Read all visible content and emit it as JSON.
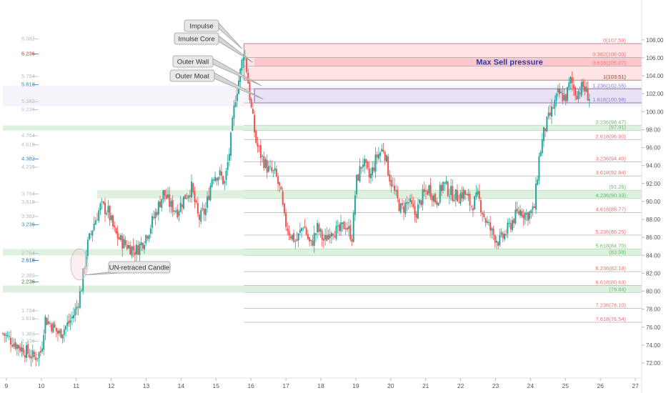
{
  "chart_data": {
    "type": "candlestick",
    "title": "",
    "xlabel": "",
    "ylabel": "",
    "ylim": [
      71,
      109
    ],
    "x_ticks": [
      {
        "label": "9",
        "day": 9
      },
      {
        "label": "10",
        "day": 10
      },
      {
        "label": "11",
        "day": 11
      },
      {
        "label": "12",
        "day": 12
      },
      {
        "label": "13",
        "day": 13
      },
      {
        "label": "14",
        "day": 14
      },
      {
        "label": "15",
        "day": 15
      },
      {
        "label": "16",
        "day": 16
      },
      {
        "label": "17",
        "day": 17
      },
      {
        "label": "18",
        "day": 18
      },
      {
        "label": "19",
        "day": 19
      },
      {
        "label": "20",
        "day": 20
      },
      {
        "label": "21",
        "day": 21
      },
      {
        "label": "22",
        "day": 22
      },
      {
        "label": "23",
        "day": 23
      },
      {
        "label": "24",
        "day": 24
      },
      {
        "label": "25",
        "day": 25
      },
      {
        "label": "26",
        "day": 26
      },
      {
        "label": "27",
        "day": 27
      }
    ],
    "y_ticks": [
      72,
      74,
      76,
      78,
      80,
      82,
      84,
      86,
      88,
      90,
      92,
      94,
      96,
      98,
      100,
      102,
      104,
      106,
      108
    ],
    "y_tick_labels": [
      "72.00",
      "74.00",
      "76.00",
      "78.00",
      "80.00",
      "82.00",
      "84.00",
      "86.00",
      "88.00",
      "90.00",
      "92.00",
      "94.00",
      "96.00",
      "98.00",
      "100.00",
      "102.00",
      "104.00",
      "106.00",
      "108.00"
    ],
    "price_path": [
      [
        8.9,
        75.3
      ],
      [
        9.3,
        74.0
      ],
      [
        9.8,
        72.6
      ],
      [
        10.0,
        73.3
      ],
      [
        10.1,
        77.0
      ],
      [
        10.3,
        76.2
      ],
      [
        10.5,
        75.2
      ],
      [
        10.8,
        76.5
      ],
      [
        11.0,
        78.0
      ],
      [
        11.15,
        80.5
      ],
      [
        11.3,
        84.8
      ],
      [
        11.5,
        87.5
      ],
      [
        11.7,
        89.5
      ],
      [
        11.9,
        89.0
      ],
      [
        12.1,
        86.5
      ],
      [
        12.3,
        85.5
      ],
      [
        12.5,
        85.0
      ],
      [
        12.7,
        84.5
      ],
      [
        12.9,
        85.5
      ],
      [
        13.1,
        87.0
      ],
      [
        13.3,
        89.0
      ],
      [
        13.5,
        91.0
      ],
      [
        13.7,
        89.5
      ],
      [
        13.9,
        89.0
      ],
      [
        14.1,
        90.5
      ],
      [
        14.3,
        91.5
      ],
      [
        14.5,
        88.0
      ],
      [
        14.7,
        89.0
      ],
      [
        14.9,
        93.0
      ],
      [
        15.1,
        93.0
      ],
      [
        15.25,
        92.0
      ],
      [
        15.4,
        96.0
      ],
      [
        15.55,
        101.5
      ],
      [
        15.7,
        104.5
      ],
      [
        15.8,
        107.0
      ],
      [
        15.9,
        104.0
      ],
      [
        16.0,
        100.5
      ],
      [
        16.15,
        96.5
      ],
      [
        16.3,
        95.0
      ],
      [
        16.5,
        93.5
      ],
      [
        16.7,
        93.0
      ],
      [
        16.85,
        91.0
      ],
      [
        16.95,
        88.0
      ],
      [
        17.1,
        86.5
      ],
      [
        17.3,
        85.5
      ],
      [
        17.5,
        87.5
      ],
      [
        17.7,
        85.0
      ],
      [
        17.9,
        87.0
      ],
      [
        18.1,
        85.5
      ],
      [
        18.3,
        87.0
      ],
      [
        18.5,
        86.5
      ],
      [
        18.7,
        87.5
      ],
      [
        18.9,
        86.0
      ],
      [
        19.0,
        92.0
      ],
      [
        19.2,
        94.5
      ],
      [
        19.4,
        92.5
      ],
      [
        19.6,
        95.0
      ],
      [
        19.8,
        96.0
      ],
      [
        19.95,
        93.0
      ],
      [
        20.1,
        91.0
      ],
      [
        20.3,
        89.0
      ],
      [
        20.5,
        90.0
      ],
      [
        20.7,
        88.5
      ],
      [
        20.9,
        90.5
      ],
      [
        21.1,
        91.5
      ],
      [
        21.3,
        90.0
      ],
      [
        21.5,
        92.0
      ],
      [
        21.7,
        91.0
      ],
      [
        21.9,
        90.5
      ],
      [
        22.1,
        91.0
      ],
      [
        22.3,
        89.5
      ],
      [
        22.5,
        90.5
      ],
      [
        22.7,
        88.0
      ],
      [
        22.9,
        86.5
      ],
      [
        23.1,
        85.5
      ],
      [
        23.3,
        86.5
      ],
      [
        23.5,
        88.0
      ],
      [
        23.7,
        89.0
      ],
      [
        23.9,
        88.5
      ],
      [
        24.1,
        89.0
      ],
      [
        24.25,
        95.0
      ],
      [
        24.4,
        98.0
      ],
      [
        24.6,
        100.0
      ],
      [
        24.8,
        102.0
      ],
      [
        25.0,
        101.5
      ],
      [
        25.15,
        103.5
      ],
      [
        25.3,
        102.0
      ],
      [
        25.5,
        102.8
      ],
      [
        25.7,
        101.5
      ]
    ],
    "fib_levels": [
      {
        "label": "0",
        "value": "107.59",
        "y": 107.59,
        "color": "#e57373"
      },
      {
        "label": "0.382",
        "value": "106.03",
        "y": 106.03,
        "color": "#e57373"
      },
      {
        "label": "0.618",
        "value": "105.07",
        "y": 105.07,
        "color": "#e57373"
      },
      {
        "label": "1",
        "value": "103.51",
        "y": 103.51,
        "color": "#c62828"
      },
      {
        "label": "1.236",
        "value": "102.55",
        "y": 102.55,
        "color": "#9575cd"
      },
      {
        "label": "1.618",
        "value": "100.98",
        "y": 100.98,
        "color": "#9575cd"
      },
      {
        "label": "2.236",
        "value": "98.47",
        "y": 98.47,
        "color": "#66bb6a"
      },
      {
        "label": "",
        "value": "97.91",
        "y": 97.91,
        "color": "#66bb6a"
      },
      {
        "label": "2.618",
        "value": "96.90",
        "y": 96.9,
        "color": "#e57373"
      },
      {
        "label": "3.236",
        "value": "94.40",
        "y": 94.4,
        "color": "#e57373"
      },
      {
        "label": "3.618",
        "value": "92.84",
        "y": 92.84,
        "color": "#e57373"
      },
      {
        "label": "",
        "value": "91.26",
        "y": 91.26,
        "color": "#66bb6a"
      },
      {
        "label": "4.236",
        "value": "90.33",
        "y": 90.33,
        "color": "#66bb6a"
      },
      {
        "label": "4.618",
        "value": "88.77",
        "y": 88.77,
        "color": "#e57373"
      },
      {
        "label": "5.236",
        "value": "86.25",
        "y": 86.25,
        "color": "#e57373"
      },
      {
        "label": "5.618",
        "value": "84.70",
        "y": 84.7,
        "color": "#66bb6a"
      },
      {
        "label": "",
        "value": "83.98",
        "y": 83.98,
        "color": "#66bb6a"
      },
      {
        "label": "6.236",
        "value": "82.18",
        "y": 82.18,
        "color": "#e57373"
      },
      {
        "label": "6.618",
        "value": "80.63",
        "y": 80.63,
        "color": "#e57373"
      },
      {
        "label": "",
        "value": "79.84",
        "y": 79.84,
        "color": "#66bb6a"
      },
      {
        "label": "7.236",
        "value": "78.10",
        "y": 78.1,
        "color": "#e57373"
      },
      {
        "label": "7.618",
        "value": "76.54",
        "y": 76.54,
        "color": "#e57373"
      }
    ],
    "zones": [
      {
        "y1": 107.59,
        "y2": 103.51,
        "x_start": 15.8,
        "fill": "#ffcdd2",
        "opacity": 0.55
      },
      {
        "y1": 106.03,
        "y2": 105.07,
        "x_start": 16.1,
        "fill": "#ffb3ba",
        "opacity": 0.6
      },
      {
        "y1": 102.55,
        "y2": 100.98,
        "x_start": 16.1,
        "fill": "#d1c4e9",
        "opacity": 0.6
      },
      {
        "y1": 102.9,
        "y2": 100.6,
        "x_start": 8.9,
        "fill": "#ede7f6",
        "opacity": 0.5
      },
      {
        "y1": 98.47,
        "y2": 97.91,
        "x_start": 8.9,
        "fill": "#c8e6c9",
        "opacity": 0.6
      },
      {
        "y1": 91.26,
        "y2": 90.33,
        "x_start": 11.6,
        "fill": "#c8e6c9",
        "opacity": 0.6
      },
      {
        "y1": 84.7,
        "y2": 83.98,
        "x_start": 8.9,
        "fill": "#c8e6c9",
        "opacity": 0.6
      },
      {
        "y1": 80.63,
        "y2": 79.84,
        "x_start": 8.9,
        "fill": "#c8e6c9",
        "opacity": 0.6
      }
    ],
    "left_fib": [
      {
        "label": "6.382",
        "y": 108.2,
        "color": "#b0bec5"
      },
      {
        "label": "6.236",
        "y": 106.5,
        "color": "#d32f2f"
      },
      {
        "label": "5.764",
        "y": 104.0,
        "color": "#b0bec5"
      },
      {
        "label": "5.618",
        "y": 103.1,
        "color": "#1e88e5"
      },
      {
        "label": "5.382",
        "y": 101.2,
        "color": "#b0bec5"
      },
      {
        "label": "5.236",
        "y": 100.3,
        "color": "#b0bec5"
      },
      {
        "label": "4.764",
        "y": 97.4,
        "color": "#b0bec5"
      },
      {
        "label": "4.618",
        "y": 96.4,
        "color": "#b0bec5"
      },
      {
        "label": "4.382",
        "y": 94.8,
        "color": "#1e88e5"
      },
      {
        "label": "4.236",
        "y": 93.9,
        "color": "#b0bec5"
      },
      {
        "label": "3.764",
        "y": 90.9,
        "color": "#b0bec5"
      },
      {
        "label": "3.618",
        "y": 90.0,
        "color": "#b0bec5"
      },
      {
        "label": "3.382",
        "y": 88.4,
        "color": "#b0bec5"
      },
      {
        "label": "3.236",
        "y": 87.5,
        "color": "#1e88e5"
      },
      {
        "label": "2.764",
        "y": 84.3,
        "color": "#b0bec5"
      },
      {
        "label": "2.618",
        "y": 83.5,
        "color": "#1565c0"
      },
      {
        "label": "2.382",
        "y": 81.8,
        "color": "#b0bec5"
      },
      {
        "label": "2.236",
        "y": 81.1,
        "color": "#2e7d32"
      },
      {
        "label": "1.764",
        "y": 77.9,
        "color": "#b0bec5"
      },
      {
        "label": "1.618",
        "y": 77.0,
        "color": "#b0bec5"
      },
      {
        "label": "1.382",
        "y": 75.3,
        "color": "#b0bec5"
      },
      {
        "label": "1.236",
        "y": 74.5,
        "color": "#b0bec5"
      },
      {
        "label": "1",
        "y": 73.0,
        "color": "#b0bec5"
      }
    ],
    "annotations": [
      {
        "text": "Impulse",
        "x": 15.75,
        "y": 107.0
      },
      {
        "text": "Imulse Core",
        "x": 16.05,
        "y": 105.5
      },
      {
        "text": "Outer Wall",
        "x": 16.3,
        "y": 102.9
      },
      {
        "text": "Outer Moat",
        "x": 16.35,
        "y": 101.4
      },
      {
        "text": "UN-retraced Candle",
        "x": 11.25,
        "y": 81.8
      }
    ],
    "zone_label": "Max Sell pressure"
  }
}
